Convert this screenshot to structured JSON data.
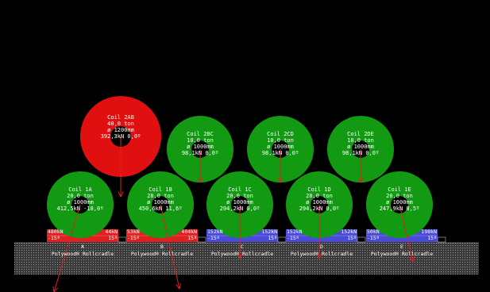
{
  "colors": {
    "background": "#000000",
    "coil_overloaded": "#e01010",
    "coil_ok": "#139a13",
    "cradle_overloaded": "#e02020",
    "cradle_ok": "#4a4ad8",
    "force_arrow": "#e02020",
    "deck": "#6f6f6f"
  },
  "coils": [
    {
      "id": "2AB",
      "name": "Coil 2AB",
      "weight": "40,0 ton",
      "diameter": "ø 1200mm",
      "force": "392,3kN 0,0º",
      "status": "overloaded"
    },
    {
      "id": "2BC",
      "name": "Coil 2BC",
      "weight": "10,0 ton",
      "diameter": "ø 1000mm",
      "force": "98,1kN 0,0º",
      "status": "ok"
    },
    {
      "id": "2CD",
      "name": "Coil 2CD",
      "weight": "10,0 ton",
      "diameter": "ø 1000mm",
      "force": "98,1kN 0,0º",
      "status": "ok"
    },
    {
      "id": "2DE",
      "name": "Coil 2DE",
      "weight": "10,0 ton",
      "diameter": "ø 1000mm",
      "force": "98,1kN 0,0º",
      "status": "ok"
    },
    {
      "id": "1A",
      "name": "Coil 1A",
      "weight": "20,0 ton",
      "diameter": "ø 1000mm",
      "force": "412,5kN -18,0º",
      "status": "ok"
    },
    {
      "id": "1B",
      "name": "Coil 1B",
      "weight": "20,0 ton",
      "diameter": "ø 1000mm",
      "force": "450,6kN 11,6º",
      "status": "ok"
    },
    {
      "id": "1C",
      "name": "Coil 1C",
      "weight": "20,0 ton",
      "diameter": "ø 1000mm",
      "force": "294,2kN 0,0º",
      "status": "ok"
    },
    {
      "id": "1D",
      "name": "Coil 1D",
      "weight": "20,0 ton",
      "diameter": "ø 1000mm",
      "force": "294,2kN 0,0º",
      "status": "ok"
    },
    {
      "id": "1E",
      "name": "Coil 1E",
      "weight": "20,0 ton",
      "diameter": "ø 1000mm",
      "force": "247,9kN 8,5º",
      "status": "ok"
    }
  ],
  "cradles": [
    {
      "letter": "A",
      "name": "Polywood® Rollcradle",
      "left_force": "480kN",
      "right_force": "44kN",
      "left_angle": "-15º",
      "right_angle": "15º",
      "status": "overloaded"
    },
    {
      "letter": "B",
      "name": "Polywood® Rollcradle",
      "left_force": "53kN",
      "right_force": "404kN",
      "left_angle": "-15º",
      "right_angle": "15º",
      "status": "overloaded"
    },
    {
      "letter": "C",
      "name": "Polywood® Rollcradle",
      "left_force": "152kN",
      "right_force": "152kN",
      "left_angle": "-15º",
      "right_angle": "15º",
      "status": "ok"
    },
    {
      "letter": "D",
      "name": "Polywood® Rollcradle",
      "left_force": "152kN",
      "right_force": "152kN",
      "left_angle": "-15º",
      "right_angle": "15º",
      "status": "ok"
    },
    {
      "letter": "E",
      "name": "Polywood® Rollcradle",
      "left_force": "50kN",
      "right_force": "198kN",
      "left_angle": "-15º",
      "right_angle": "15º",
      "status": "ok"
    }
  ]
}
